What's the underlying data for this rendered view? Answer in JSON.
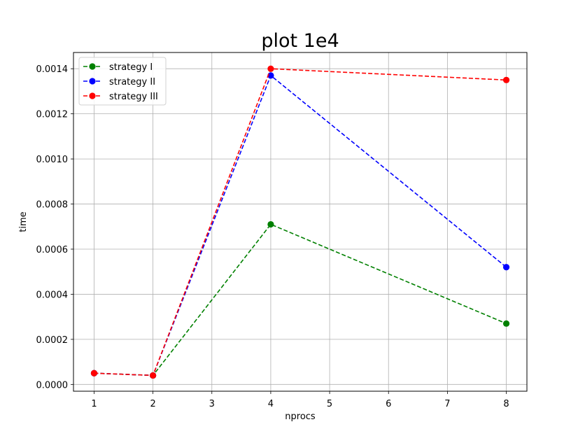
{
  "chart_data": {
    "type": "line",
    "title": "plot 1e4",
    "xlabel": "nprocs",
    "ylabel": "time",
    "x_categories": [
      "1",
      "2",
      "3",
      "4",
      "5",
      "6",
      "7",
      "8"
    ],
    "x": [
      1,
      2,
      4,
      8
    ],
    "xlim": [
      0.65,
      8.35
    ],
    "ylim": [
      -3e-05,
      0.001472
    ],
    "y_ticks": [
      "0.0000",
      "0.0002",
      "0.0004",
      "0.0006",
      "0.0008",
      "0.0010",
      "0.0012",
      "0.0014"
    ],
    "y_tick_values": [
      0,
      0.0002,
      0.0004,
      0.0006,
      0.0008,
      0.001,
      0.0012,
      0.0014
    ],
    "grid": true,
    "legend_position": "top-left",
    "series": [
      {
        "name": "strategy I",
        "color": "#008000",
        "line_style": "dashed",
        "marker": "circle",
        "values": [
          5e-05,
          4e-05,
          0.00071,
          0.00027
        ]
      },
      {
        "name": "strategy II",
        "color": "#0000ff",
        "line_style": "dashed",
        "marker": "circle",
        "values": [
          5e-05,
          4e-05,
          0.00137,
          0.00052
        ]
      },
      {
        "name": "strategy III",
        "color": "#ff0000",
        "line_style": "dashed",
        "marker": "circle",
        "values": [
          5e-05,
          4e-05,
          0.0014,
          0.00135
        ]
      }
    ]
  }
}
